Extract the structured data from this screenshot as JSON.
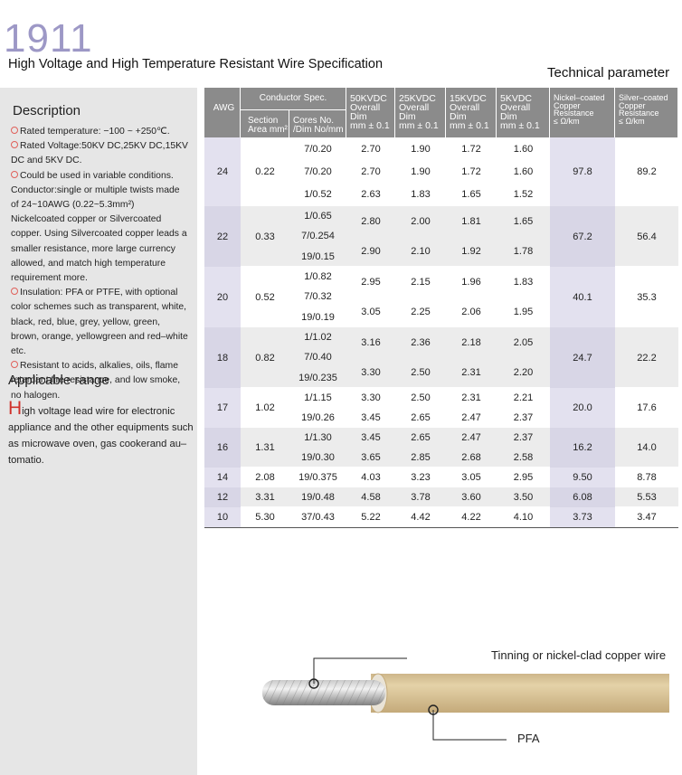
{
  "header": {
    "model": "1911",
    "title": "High Voltage and High Temperature Resistant Wire Specification",
    "section": "Technical parameter"
  },
  "description": {
    "heading": "Description",
    "items": [
      "Rated temperature: −100 ~ +250℃.",
      "Rated Voltage:50KV DC,25KV DC,15KV DC and 5KV DC.",
      "Could be used in variable conditions. Conductor:single or multiple twists made of 24~10AWG (0.22~5.3mm²) Nickelcoated copper or Silvercoated copper. Using Silvercoated copper leads a smaller resistance, more large currency allowed, and match high temperature requirement more.",
      "Insulation: PFA or PTFE, with optional color schemes such as transparent, white, black, red, blue, grey, yellow, green, brown, orange, yellowgreen and red–white etc.",
      "Resistant to acids, alkalies, oils, flame retardant,fire resistance, and low smoke, no halogen."
    ]
  },
  "applicable": {
    "heading": "Applicable range",
    "text": "High voltage lead wire for electronic appliance and the other equipments such as microwave oven, gas cookerand au–tomatio."
  },
  "table": {
    "headers": {
      "awg": "AWG",
      "conductor": "Conductor Spec.",
      "area": "Section\nArea mm²",
      "cores": "Cores No.\n/Dim No/mm",
      "v50": "50KVDC\nOverall\nDim\nmm ± 0.1",
      "v25": "25KVDC\nOverall\nDim\nmm ± 0.1",
      "v15": "15KVDC\nOverall\nDim\nmm ± 0.1",
      "v5": "5KVDC\nOverall\nDim\nmm ± 0.1",
      "nickel": "Nickel–coated\nCopper\nResistance\n≤ Ω/km",
      "silver": "Silver–coated\nCopper\nResistance\n≤ Ω/km"
    },
    "rows": [
      {
        "awg": "24",
        "area": "0.22",
        "cores": [
          "7/0.20",
          "7/0.20",
          "1/0.52"
        ],
        "dims": [
          [
            "2.70",
            "1.90",
            "1.72",
            "1.60"
          ],
          [
            "2.70",
            "1.90",
            "1.72",
            "1.60"
          ],
          [
            "2.63",
            "1.83",
            "1.65",
            "1.52"
          ]
        ],
        "nickel": "97.8",
        "silver": "89.2"
      },
      {
        "awg": "22",
        "area": "0.33",
        "cores": [
          "1/0.65",
          "7/0.254",
          "19/0.15"
        ],
        "dims": [
          [
            "2.80",
            "2.00",
            "1.81",
            "1.65"
          ],
          [
            "2.90",
            "2.10",
            "1.92",
            "1.78"
          ]
        ],
        "nickel": "67.2",
        "silver": "56.4"
      },
      {
        "awg": "20",
        "area": "0.52",
        "cores": [
          "1/0.82",
          "7/0.32",
          "19/0.19"
        ],
        "dims": [
          [
            "2.95",
            "2.15",
            "1.96",
            "1.83"
          ],
          [
            "3.05",
            "2.25",
            "2.06",
            "1.95"
          ]
        ],
        "nickel": "40.1",
        "silver": "35.3"
      },
      {
        "awg": "18",
        "area": "0.82",
        "cores": [
          "1/1.02",
          "7/0.40",
          "19/0.235"
        ],
        "dims": [
          [
            "3.16",
            "2.36",
            "2.18",
            "2.05"
          ],
          [
            "3.30",
            "2.50",
            "2.31",
            "2.20"
          ]
        ],
        "nickel": "24.7",
        "silver": "22.2"
      },
      {
        "awg": "17",
        "area": "1.02",
        "cores": [
          "1/1.15",
          "19/0.26"
        ],
        "dims": [
          [
            "3.30",
            "2.50",
            "2.31",
            "2.21"
          ],
          [
            "3.45",
            "2.65",
            "2.47",
            "2.37"
          ]
        ],
        "nickel": "20.0",
        "silver": "17.6"
      },
      {
        "awg": "16",
        "area": "1.31",
        "cores": [
          "1/1.30",
          "19/0.30"
        ],
        "dims": [
          [
            "3.45",
            "2.65",
            "2.47",
            "2.37"
          ],
          [
            "3.65",
            "2.85",
            "2.68",
            "2.58"
          ]
        ],
        "nickel": "16.2",
        "silver": "14.0"
      },
      {
        "awg": "14",
        "area": "2.08",
        "cores": [
          "19/0.375"
        ],
        "dims": [
          [
            "4.03",
            "3.23",
            "3.05",
            "2.95"
          ]
        ],
        "nickel": "9.50",
        "silver": "8.78"
      },
      {
        "awg": "12",
        "area": "3.31",
        "cores": [
          "19/0.48"
        ],
        "dims": [
          [
            "4.58",
            "3.78",
            "3.60",
            "3.50"
          ]
        ],
        "nickel": "6.08",
        "silver": "5.53"
      },
      {
        "awg": "10",
        "area": "5.30",
        "cores": [
          "37/0.43"
        ],
        "dims": [
          [
            "5.22",
            "4.42",
            "4.22",
            "4.10"
          ]
        ],
        "nickel": "3.73",
        "silver": "3.47"
      }
    ]
  },
  "diagram": {
    "conductor_label": "Tinning or nickel-clad copper wire",
    "insulation_label": "PFA"
  }
}
